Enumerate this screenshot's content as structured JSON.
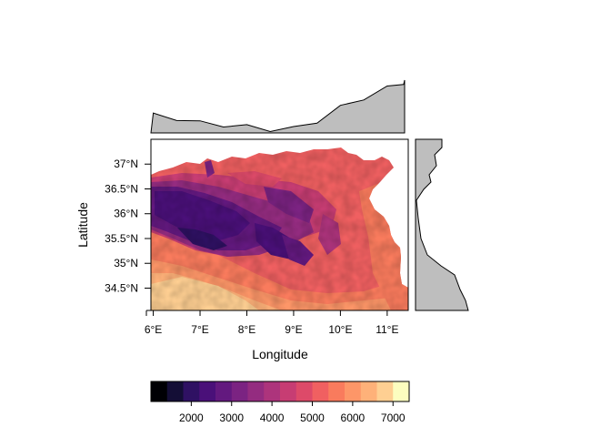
{
  "chart_data": {
    "type": "heatmap",
    "description_free": true,
    "xlabel": "Longitude",
    "ylabel": "Latitude",
    "xlim": [
      5.95,
      11.45
    ],
    "ylim": [
      34.05,
      37.5
    ],
    "x_ticks": [
      {
        "value": 6,
        "label": "6°E"
      },
      {
        "value": 7,
        "label": "7°E"
      },
      {
        "value": 8,
        "label": "8°E"
      },
      {
        "value": 9,
        "label": "9°E"
      },
      {
        "value": 10,
        "label": "10°E"
      },
      {
        "value": 11,
        "label": "11°E"
      }
    ],
    "y_ticks": [
      {
        "value": 37,
        "label": "37°N"
      },
      {
        "value": 36.5,
        "label": "36.5°N"
      },
      {
        "value": 36,
        "label": "36°N"
      },
      {
        "value": 35.5,
        "label": "35.5°N"
      },
      {
        "value": 35,
        "label": "35°N"
      },
      {
        "value": 34.5,
        "label": "34.5°N"
      }
    ],
    "colorbar": {
      "range": [
        1000,
        7400
      ],
      "ticks": [
        2000,
        3000,
        4000,
        5000,
        6000,
        7000
      ],
      "colors": [
        "#000004",
        "#140e36",
        "#2f1163",
        "#4a1079",
        "#63197f",
        "#7b2382",
        "#942c80",
        "#ad347c",
        "#c73d73",
        "#dd4a69",
        "#f06061",
        "#f97b5d",
        "#fd9668",
        "#feb179",
        "#fecf92",
        "#fcfdbf"
      ]
    },
    "longitude_profile": [
      {
        "lon": 6.0,
        "value": 4200
      },
      {
        "lon": 6.5,
        "value": 3900
      },
      {
        "lon": 7.0,
        "value": 3600
      },
      {
        "lon": 7.5,
        "value": 3400
      },
      {
        "lon": 8.0,
        "value": 3300
      },
      {
        "lon": 8.5,
        "value": 3050
      },
      {
        "lon": 9.0,
        "value": 3150
      },
      {
        "lon": 9.5,
        "value": 3700
      },
      {
        "lon": 10.0,
        "value": 4800
      },
      {
        "lon": 10.5,
        "value": 5500
      },
      {
        "lon": 11.0,
        "value": 6300
      },
      {
        "lon": 11.35,
        "value": 6700
      }
    ],
    "latitude_profile": [
      {
        "lat": 37.3,
        "value": 4600
      },
      {
        "lat": 37.0,
        "value": 4300
      },
      {
        "lat": 36.7,
        "value": 3900
      },
      {
        "lat": 36.4,
        "value": 3700
      },
      {
        "lat": 36.0,
        "value": 3650
      },
      {
        "lat": 35.5,
        "value": 4100
      },
      {
        "lat": 35.0,
        "value": 4800
      },
      {
        "lat": 34.7,
        "value": 5600
      },
      {
        "lat": 34.4,
        "value": 6300
      },
      {
        "lat": 34.1,
        "value": 6700
      }
    ]
  }
}
